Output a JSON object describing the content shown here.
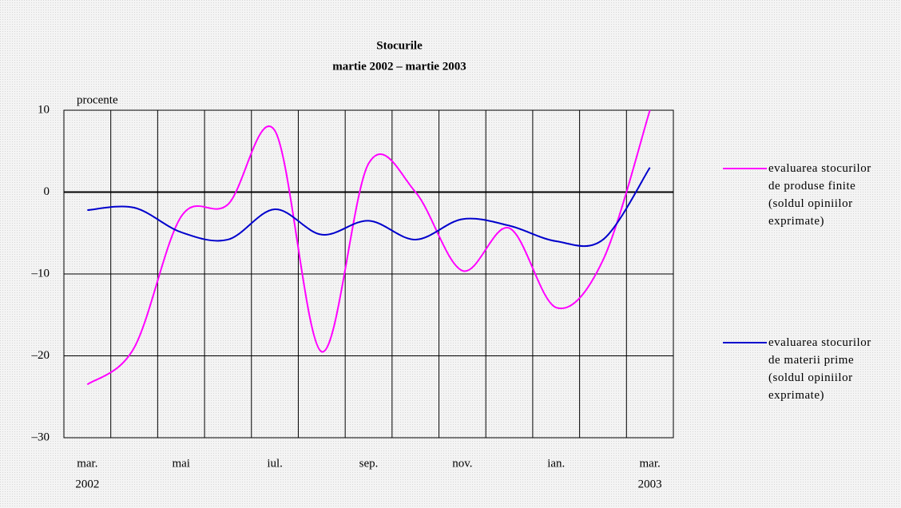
{
  "chart_data": {
    "type": "line",
    "title": "Stocurile",
    "subtitle": "martie 2002 – martie 2003",
    "y_axis_label": "procente",
    "categories": [
      "mar.",
      null,
      "mai",
      null,
      "iul.",
      null,
      "sep.",
      null,
      "nov.",
      null,
      "ian.",
      null,
      "mar."
    ],
    "category_years": [
      "2002",
      null,
      null,
      null,
      null,
      null,
      null,
      null,
      null,
      null,
      null,
      null,
      "2003"
    ],
    "series": [
      {
        "name": "evaluarea stocurilor de produse finite (soldul opiniilor exprimate)",
        "color": "#ff00ff",
        "values": [
          -23.5,
          -19,
          -3,
          -1.5,
          7.5,
          -19.5,
          3.5,
          0,
          -9.6,
          -4.4,
          -14.1,
          -8.3,
          10
        ]
      },
      {
        "name": "evaluarea stocurilor de materii prime (soldul opiniilor exprimate)",
        "color": "#0000cc",
        "values": [
          -2.2,
          -1.9,
          -4.9,
          -5.8,
          -2.1,
          -5.2,
          -3.5,
          -5.8,
          -3.3,
          -4.1,
          -6,
          -5.8,
          3
        ]
      }
    ],
    "ylim": [
      -30,
      10
    ],
    "yticks": [
      {
        "value": -30,
        "label": "–30"
      },
      {
        "value": -20,
        "label": "–20"
      },
      {
        "value": -10,
        "label": "–10"
      },
      0,
      10
    ],
    "grid": true,
    "legend": "right"
  }
}
